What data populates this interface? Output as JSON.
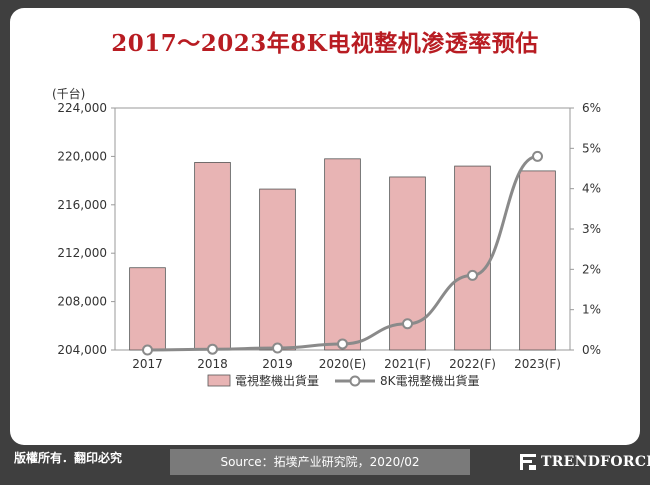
{
  "header": {
    "title": "2017～2023年8K电视整机渗透率预估"
  },
  "footer": {
    "rights": "版權所有．翻印必究",
    "source": "Source：拓墣产业研究院，2020/02",
    "brand": "TRENDFORCE"
  },
  "chart_data": {
    "type": "bar",
    "title": "2017～2023年8K电视整机渗透率预估",
    "unit_label": "(千台)",
    "categories": [
      "2017",
      "2018",
      "2019",
      "2020(E)",
      "2021(F)",
      "2022(F)",
      "2023(F)"
    ],
    "y_left": {
      "ylim": [
        204000,
        224000
      ],
      "ticks": [
        "204,000",
        "208,000",
        "212,000",
        "216,000",
        "220,000",
        "224,000"
      ],
      "tick_values": [
        204000,
        208000,
        212000,
        216000,
        220000,
        224000
      ]
    },
    "y_right": {
      "ylim": [
        0,
        6
      ],
      "ticks": [
        "0%",
        "1%",
        "2%",
        "3%",
        "4%",
        "5%",
        "6%"
      ],
      "tick_values": [
        0,
        1,
        2,
        3,
        4,
        5,
        6
      ]
    },
    "series": [
      {
        "name": "電視整機出貨量",
        "type": "bar",
        "axis": "left",
        "color": "#e8b4b4",
        "values": [
          210800,
          219500,
          217300,
          219800,
          218300,
          219200,
          218800
        ]
      },
      {
        "name": "8K電視整機出貨量",
        "type": "line",
        "axis": "right",
        "color": "#8a8a8a",
        "values": [
          0.0,
          0.02,
          0.05,
          0.15,
          0.65,
          1.85,
          4.8
        ]
      }
    ],
    "grid": false,
    "legend_position": "bottom"
  }
}
